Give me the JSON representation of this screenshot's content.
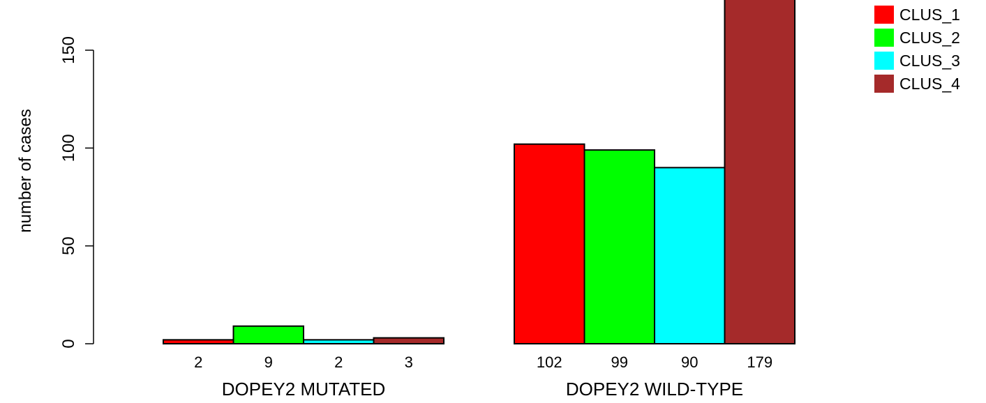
{
  "chart_data": {
    "type": "bar",
    "ylabel": "number of cases",
    "ylim": [
      0,
      179
    ],
    "y_ticks": [
      0,
      50,
      100,
      150
    ],
    "groups": [
      "DOPEY2 MUTATED",
      "DOPEY2 WILD-TYPE"
    ],
    "series": [
      {
        "name": "CLUS_1",
        "color": "#ff0000",
        "values": [
          2,
          102
        ]
      },
      {
        "name": "CLUS_2",
        "color": "#00ff00",
        "values": [
          9,
          99
        ]
      },
      {
        "name": "CLUS_3",
        "color": "#00ffff",
        "values": [
          2,
          90
        ]
      },
      {
        "name": "CLUS_4",
        "color": "#a52a2a",
        "values": [
          3,
          179
        ]
      }
    ],
    "bar_labels": [
      [
        "2",
        "9",
        "2",
        "3"
      ],
      [
        "102",
        "99",
        "90",
        "179"
      ]
    ],
    "legend_position": "top-right"
  }
}
